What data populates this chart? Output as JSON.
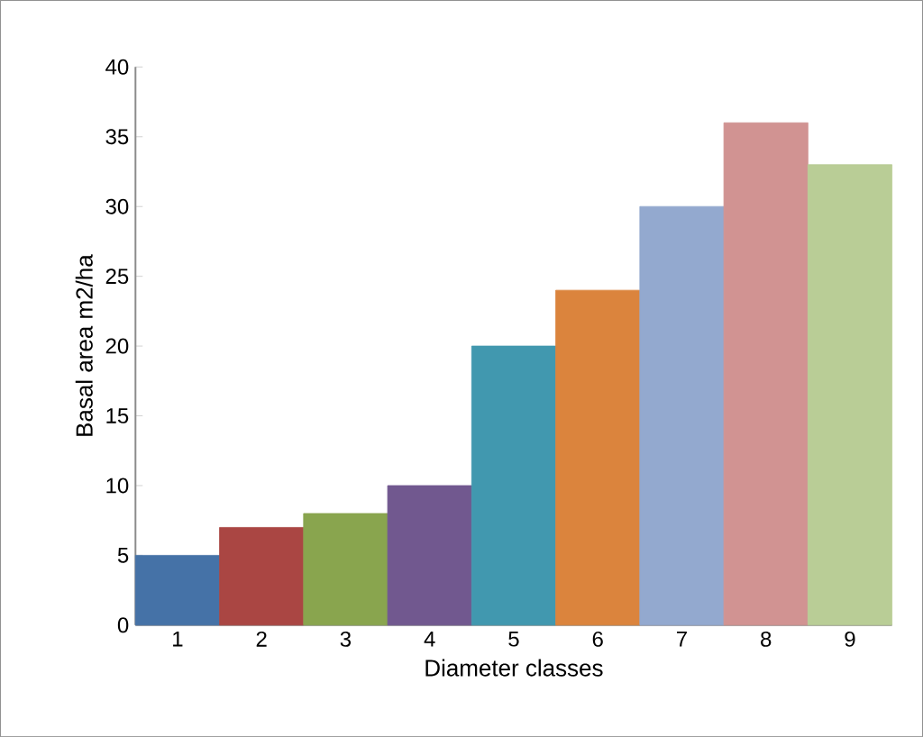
{
  "chart_data": {
    "type": "bar",
    "xlabel": "Diameter classes",
    "ylabel": "Basal  area m2/ha",
    "categories": [
      "1",
      "2",
      "3",
      "4",
      "5",
      "6",
      "7",
      "8",
      "9"
    ],
    "values": [
      5,
      7,
      8,
      10,
      20,
      24,
      30,
      36,
      33
    ],
    "colors": [
      "#4572a7",
      "#aa4643",
      "#89a54e",
      "#71588f",
      "#4198af",
      "#db843d",
      "#93a9cf",
      "#d19392",
      "#b9cd96"
    ],
    "ylim": [
      0,
      40
    ],
    "yticks": [
      0,
      5,
      10,
      15,
      20,
      25,
      30,
      35,
      40
    ],
    "grid": false
  }
}
